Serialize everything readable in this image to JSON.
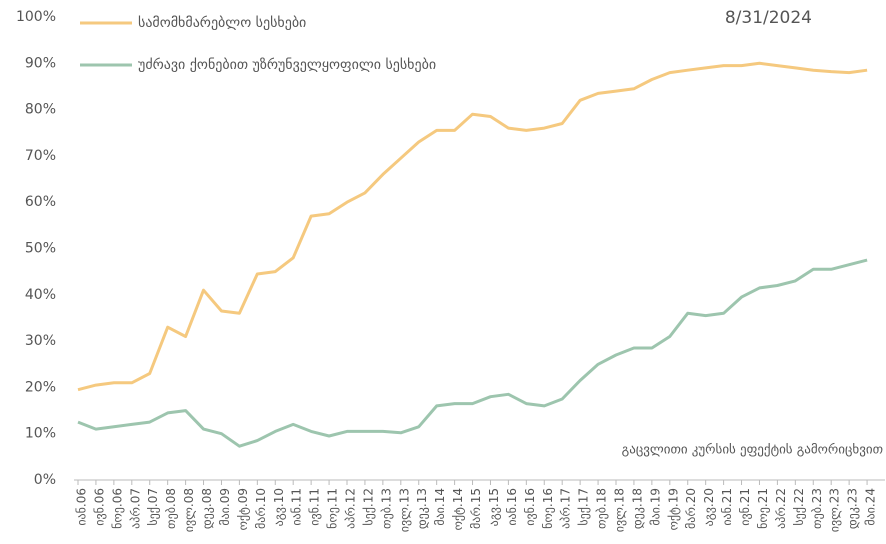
{
  "chart_data": {
    "type": "line",
    "categories": [
      "იან.06",
      "ივნ.06",
      "ნოე.06",
      "აპრ.07",
      "სექ.07",
      "თებ.08",
      "ივლ.08",
      "დეკ.08",
      "მაი.09",
      "ოქტ.09",
      "მარ.10",
      "აგვ.10",
      "იან.11",
      "ივნ.11",
      "ნოე.11",
      "აპრ.12",
      "სექ.12",
      "თებ.13",
      "ივლ.13",
      "დეკ.13",
      "მაი.14",
      "ოქტ.14",
      "მარ.15",
      "აგვ.15",
      "იან.16",
      "ივნ.16",
      "ნოე.16",
      "აპრ.17",
      "სექ.17",
      "თებ.18",
      "ივლ.18",
      "დეკ.18",
      "მაი.19",
      "ოქტ.19",
      "მარ.20",
      "აგვ.20",
      "იან.21",
      "ივნ.21",
      "ნოე.21",
      "აპრ.22",
      "სექ.22",
      "თებ.23",
      "ივლ.23",
      "დეკ.23",
      "მაი.24"
    ],
    "series": [
      {
        "name": "სამომხმარებლო სესხები",
        "color": "#f5c97f",
        "values": [
          19.5,
          20.5,
          21,
          21,
          23,
          33,
          31,
          41,
          36.5,
          36,
          44.5,
          45,
          48,
          57,
          57.5,
          60,
          62,
          66,
          69.5,
          73,
          75.5,
          75.5,
          79,
          78.5,
          76,
          75.5,
          76,
          77,
          82,
          83.5,
          84,
          84.5,
          86.5,
          88,
          88.5,
          89,
          89.5,
          89.5,
          90,
          89.5,
          89,
          88.5,
          88.2,
          88,
          88.5
        ]
      },
      {
        "name": "უძრავი ქონებით უზრუნველყოფილი სესხები",
        "color": "#9dc5ae",
        "values": [
          12.5,
          11,
          11.5,
          12,
          12.5,
          14.5,
          15,
          11,
          10,
          7.3,
          8.5,
          10.5,
          12,
          10.5,
          9.5,
          10.5,
          10.5,
          10.5,
          10.2,
          11.5,
          16,
          16.5,
          16.5,
          18,
          18.5,
          16.5,
          16,
          17.5,
          21.5,
          25,
          27,
          28.5,
          28.5,
          31,
          36,
          35.5,
          36,
          39.5,
          41.5,
          42,
          43,
          45.5,
          45.5,
          46.5,
          47.5
        ]
      }
    ],
    "ylim": [
      0,
      100
    ],
    "yticks": [
      {
        "value": 0,
        "label": "0%"
      },
      {
        "value": 10,
        "label": "10%"
      },
      {
        "value": 20,
        "label": "20%"
      },
      {
        "value": 30,
        "label": "30%"
      },
      {
        "value": 40,
        "label": "40%"
      },
      {
        "value": 50,
        "label": "50%"
      },
      {
        "value": 60,
        "label": "60%"
      },
      {
        "value": 70,
        "label": "70%"
      },
      {
        "value": 80,
        "label": "80%"
      },
      {
        "value": 90,
        "label": "90%"
      },
      {
        "value": 100,
        "label": "100%"
      }
    ],
    "annotations": [
      "8/31/2024",
      "გაცვლითი კურსის ეფექტის გამორიცხვით"
    ]
  }
}
